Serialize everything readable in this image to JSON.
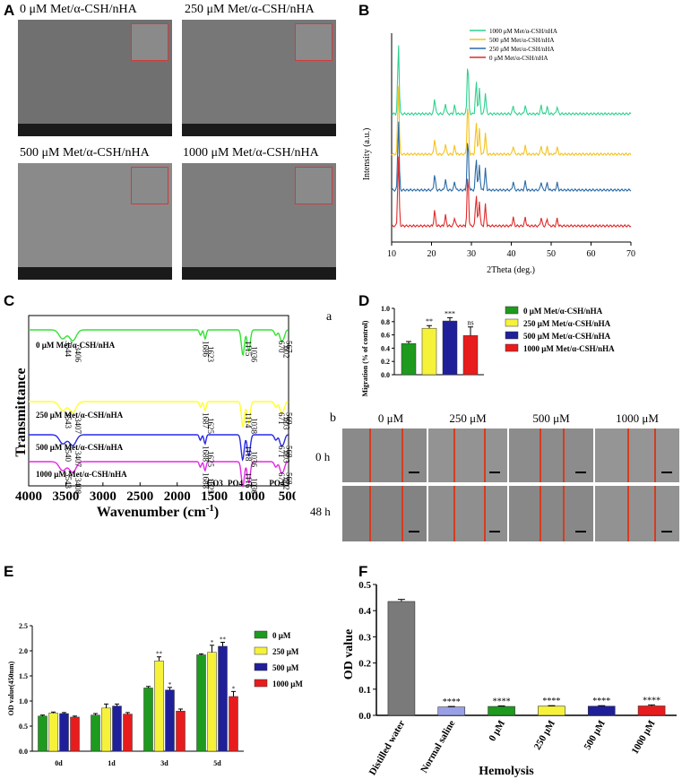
{
  "panel_labels": {
    "A": "A",
    "B": "B",
    "C": "C",
    "D": "D",
    "E": "E",
    "F": "F"
  },
  "sem": {
    "titles": [
      "0 μM Met/α-CSH/nHA",
      "250 μM Met/α-CSH/nHA",
      "500 μM Met/α-CSH/nHA",
      "1000 μM Met/α-CSH/nHA"
    ]
  },
  "xrd": {
    "ylabel": "Intensity (a.u.)",
    "xlabel": "2Theta (deg.)",
    "legend": [
      "1000 μM Met/α-CSH/nHA",
      "500 μM Met/α-CSH/nHA",
      "250 μM Met/α-CSH/nHA",
      "0 μM Met/α-CSH/nHA"
    ],
    "colors": [
      "#2fd18f",
      "#f4c21f",
      "#2a6aa6",
      "#e02a2a"
    ]
  },
  "ftir": {
    "ylabel": "Transmittance",
    "xlabel": "Wavenumber (cm",
    "xlabel_sup": "-1",
    "xlabel_end": ")",
    "sample_labels": [
      "0 μM Met/α-CSH/nHA",
      "250 μM Met/α-CSH/nHA",
      "500 μM Met/α-CSH/nHA",
      "1000 μM Met/α-CSH/nHA"
    ],
    "colors": [
      "#34e234",
      "#ffff2a",
      "#2a2ae8",
      "#e22ae2"
    ],
    "band_annotations": [
      "CO3",
      "PO4",
      "PO4"
    ]
  },
  "migration": {
    "sub_a": "a",
    "sub_b": "b",
    "legend": [
      "0 μM Met/α-CSH/nHA",
      "250 μM Met/α-CSH/nHA",
      "500 μM Met/α-CSH/nHA",
      "1000 μM Met/α-CSH/nHA"
    ],
    "col_labels": [
      "0 μM",
      "250 μM",
      "500 μM",
      "1000 μM"
    ],
    "row_labels": [
      "0 h",
      "48 h"
    ]
  },
  "od_legend": [
    "0 μM",
    "250 μM",
    "500 μM",
    "1000 μM"
  ],
  "hemolysis_title": "Hemolysis",
  "chart_data": [
    {
      "type": "line",
      "panel": "B",
      "title": "",
      "xlabel": "2Theta (deg.)",
      "ylabel": "Intensity (a.u.)",
      "xlim": [
        10,
        70
      ],
      "xticks": [
        "10",
        "20",
        "30",
        "40",
        "50",
        "60",
        "70"
      ],
      "series": [
        {
          "name": "1000 μM Met/α-CSH/nHA",
          "peaks_x": [
            11.7,
            20.8,
            23.5,
            25.8,
            29.1,
            31.2,
            32.0,
            33.5,
            40.5,
            43.5,
            47.5,
            49.0,
            51.5
          ]
        },
        {
          "name": "500 μM Met/α-CSH/nHA",
          "peaks_x": [
            11.7,
            20.8,
            23.5,
            25.8,
            29.1,
            31.2,
            32.0,
            33.5,
            40.5,
            43.5,
            47.5,
            49.0,
            51.5
          ]
        },
        {
          "name": "250 μM Met/α-CSH/nHA",
          "peaks_x": [
            11.7,
            20.8,
            23.5,
            25.8,
            29.1,
            31.2,
            32.0,
            33.5,
            40.5,
            43.5,
            47.5,
            49.0,
            51.5
          ]
        },
        {
          "name": "0 μM Met/α-CSH/nHA",
          "peaks_x": [
            11.7,
            20.8,
            23.5,
            25.8,
            29.1,
            31.2,
            32.0,
            33.5,
            40.5,
            43.5,
            47.5,
            49.0,
            51.5
          ]
        }
      ]
    },
    {
      "type": "line",
      "panel": "C",
      "title": "",
      "xlabel": "Wavenumber (cm-1)",
      "ylabel": "Transmittance",
      "xlim": [
        4000,
        500
      ],
      "xticks": [
        "4000",
        "3500",
        "3000",
        "2500",
        "2000",
        "1500",
        "1000",
        "500"
      ],
      "series": [
        {
          "name": "0 μM Met/α-CSH/nHA",
          "band_labels": [
            "3544",
            "3406",
            "1686",
            "1623",
            "1115",
            "1036",
            "670",
            "602",
            "567"
          ]
        },
        {
          "name": "250 μM Met/α-CSH/nHA",
          "band_labels": [
            "3543",
            "3407",
            "1687",
            "1625",
            "1114",
            "1038",
            "671",
            "603",
            "569"
          ]
        },
        {
          "name": "500 μM Met/α-CSH/nHA",
          "band_labels": [
            "3540",
            "3407",
            "1688",
            "1625",
            "1118",
            "1036",
            "671",
            "603",
            "568"
          ]
        },
        {
          "name": "1000 μM Met/α-CSH/nHA",
          "band_labels": [
            "3543",
            "3408",
            "1688",
            "1625",
            "1116",
            "1036",
            "671",
            "602",
            "568"
          ]
        }
      ]
    },
    {
      "type": "bar",
      "panel": "D",
      "ylabel": "Migration (% of control)",
      "ylim": [
        0,
        1.0
      ],
      "yticks": [
        "0.0",
        "0.2",
        "0.4",
        "0.6",
        "0.8",
        "1.0"
      ],
      "categories": [
        "0 μM Met/α-CSH/nHA",
        "250 μM Met/α-CSH/nHA",
        "500 μM Met/α-CSH/nHA",
        "1000 μM Met/α-CSH/nHA"
      ],
      "values": [
        0.47,
        0.7,
        0.81,
        0.59
      ],
      "errors": [
        0.03,
        0.04,
        0.05,
        0.13
      ],
      "annotations": [
        "",
        "**",
        "***",
        "ns"
      ],
      "colors": [
        "#1e9a1e",
        "#f6f23a",
        "#1f1f9a",
        "#e81c1c"
      ]
    },
    {
      "type": "bar",
      "panel": "E",
      "ylabel": "OD value(450nm)",
      "ylim": [
        0,
        2.5
      ],
      "yticks": [
        "0.0",
        "0.5",
        "1.0",
        "1.5",
        "2.0",
        "2.5"
      ],
      "categories": [
        "0d",
        "1d",
        "3d",
        "5d"
      ],
      "series": [
        {
          "name": "0 μM",
          "values": [
            0.7,
            0.72,
            1.26,
            1.92
          ],
          "errors": [
            0.02,
            0.03,
            0.03,
            0.02
          ],
          "color": "#1e9a1e"
        },
        {
          "name": "250 μM",
          "values": [
            0.76,
            0.86,
            1.8,
            1.97
          ],
          "errors": [
            0.02,
            0.08,
            0.08,
            0.14
          ],
          "color": "#f6f23a"
        },
        {
          "name": "500 μM",
          "values": [
            0.75,
            0.9,
            1.22,
            2.09
          ],
          "errors": [
            0.02,
            0.04,
            0.05,
            0.08
          ],
          "color": "#1f1f9a"
        },
        {
          "name": "1000 μM",
          "values": [
            0.68,
            0.74,
            0.8,
            1.09
          ],
          "errors": [
            0.02,
            0.03,
            0.04,
            0.1
          ],
          "color": "#e81c1c"
        }
      ],
      "annotations": [
        [
          "",
          "",
          "",
          ""
        ],
        [
          "",
          "",
          "",
          ""
        ],
        [
          "",
          "**",
          "*",
          ""
        ],
        [
          "",
          "*",
          "**",
          "*"
        ]
      ]
    },
    {
      "type": "bar",
      "panel": "F",
      "ylabel": "OD value",
      "xlabel": "Hemolysis",
      "ylim": [
        0,
        0.5
      ],
      "yticks": [
        "0.0",
        "0.1",
        "0.2",
        "0.3",
        "0.4",
        "0.5"
      ],
      "categories": [
        "Distilled water",
        "Normal saline",
        "0 μM",
        "250 μM",
        "500 μM",
        "1000 μM"
      ],
      "values": [
        0.435,
        0.032,
        0.034,
        0.035,
        0.035,
        0.036
      ],
      "errors": [
        0.008,
        0.002,
        0.002,
        0.002,
        0.002,
        0.004
      ],
      "annotations": [
        "",
        "****",
        "****",
        "****",
        "****",
        "****"
      ],
      "colors": [
        "#7a7a7a",
        "#9aa0e6",
        "#1e9a1e",
        "#f6f23a",
        "#1f1f9a",
        "#e81c1c"
      ]
    }
  ]
}
